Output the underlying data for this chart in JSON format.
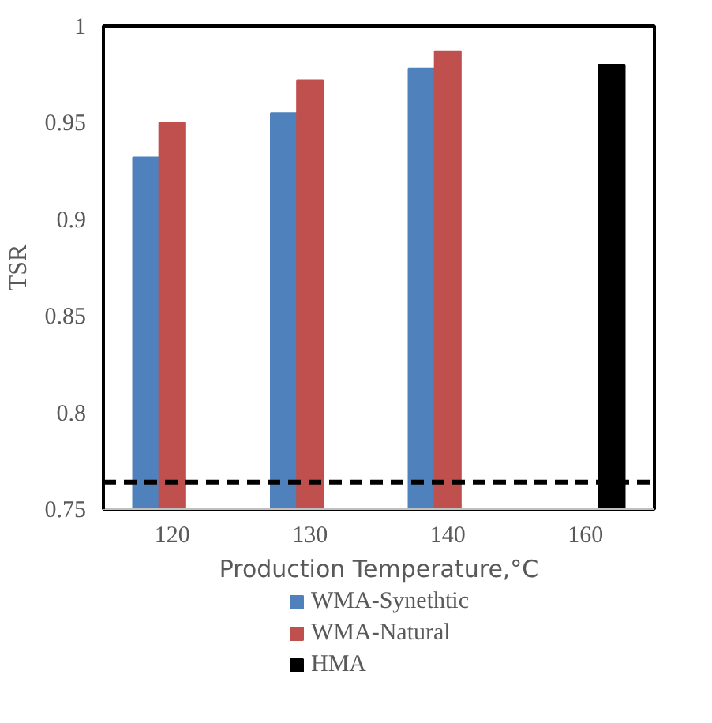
{
  "chart_data": {
    "type": "bar",
    "xlabel": "Production Temperature,°C",
    "ylabel": "TSR",
    "categories": [
      "120",
      "130",
      "140",
      "160"
    ],
    "series": [
      {
        "name": "WMA-Synethtic",
        "color": "#4f81bd",
        "values": [
          0.932,
          0.955,
          0.978,
          null
        ]
      },
      {
        "name": "WMA-Natural",
        "color": "#c0504d",
        "values": [
          0.95,
          0.972,
          0.987,
          null
        ]
      },
      {
        "name": "HMA",
        "color": "#000000",
        "values": [
          null,
          null,
          null,
          0.98
        ]
      }
    ],
    "ylim": [
      0.75,
      1
    ],
    "yticks": [
      0.75,
      0.8,
      0.85,
      0.9,
      0.95,
      1
    ],
    "ref_lines": [
      {
        "axis": "y",
        "value": 0.764,
        "color": "#000000",
        "line_style": "dashed"
      }
    ],
    "grid": false,
    "legend": "bottom"
  }
}
